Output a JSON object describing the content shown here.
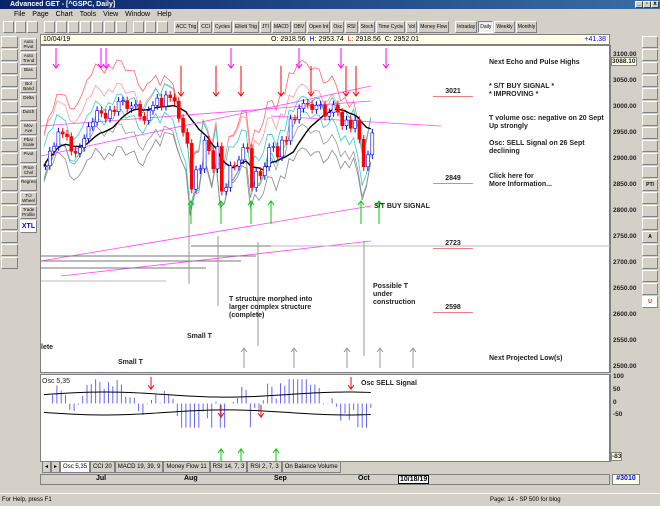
{
  "window": {
    "title": "Advanced GET - [^GSPC, Daily]"
  },
  "menu": [
    "File",
    "Page",
    "Chart",
    "Tools",
    "View",
    "Window",
    "Help"
  ],
  "toolbar": {
    "study_buttons": [
      "ACC Trig",
      "CCI",
      "Cycles",
      "Elliott Trig",
      "JTI",
      "MACD",
      "OBV",
      "Open Int",
      "Osc",
      "RSI",
      "Stoch",
      "Time Cycle",
      "Vol",
      "Money Flow"
    ],
    "period_buttons": [
      "Intraday",
      "Daily",
      "Weekly",
      "Monthly"
    ],
    "active_period": "Daily"
  },
  "infobar": {
    "date": "10/04/19",
    "open_label": "O:",
    "open": "2918.56",
    "high_label": "H:",
    "high": "2953.74",
    "low_label": "L:",
    "low": "2918.56",
    "close_label": "C:",
    "close": "2952.01",
    "change": "+41.38"
  },
  "left_tools": [
    "Auto Pivot",
    "Auto Trend",
    "Bias",
    "Bol Band",
    "Delta",
    "Dutch",
    "Mov Ave",
    "Pbar Scale",
    "Pivot",
    "Price Chnl",
    "Regression",
    "T/J Wheel",
    "Trade Profile",
    "XTL"
  ],
  "price_axis": {
    "ticks": [
      "3100.00",
      "3050.00",
      "3000.00",
      "2950.00",
      "2900.00",
      "2850.00",
      "2800.00",
      "2750.00",
      "2700.00",
      "2650.00",
      "2600.00",
      "2550.00",
      "2500.00"
    ],
    "current": "3088.10"
  },
  "levels": [
    "3021",
    "2849",
    "2723",
    "2598"
  ],
  "annotations": {
    "echo": "Next Echo and Pulse Highs",
    "buy1": "* S/T BUY SIGNAL *",
    "buy2": "* IMPROVING *",
    "vol1": "T volume osc: negative on 20 Sept",
    "vol2": "Up strongly",
    "osc1": "Osc: SELL Signal on 26 Sept",
    "osc2": "declining",
    "click1": "Click here for",
    "click2": "More Information...",
    "st_buy": "S/T BUY SIGNAL",
    "t_struct1": "T structure morphed into",
    "t_struct2": "larger complex structure",
    "t_struct3": "(complete)",
    "possible1": "Possible T",
    "possible2": "under",
    "possible3": "construction",
    "small_t1": "Small T",
    "small_t2": "Small T",
    "lete": "lete",
    "next_low": "Next Projected Low(s)"
  },
  "osc": {
    "label": "Osc 5,35",
    "signal": "Osc SELL Signal",
    "ticks": [
      "100",
      "50",
      "0",
      "-50"
    ],
    "current": "-83"
  },
  "tabs": [
    "Osc 5,35",
    "CCI 20",
    "MACD 19, 39, 9",
    "Money Flow 11",
    "RSI 14, 7, 3",
    "RSI 2, 7, 3",
    "On Balance Volume"
  ],
  "dates": {
    "months": [
      "Jul",
      "Aug",
      "Sep",
      "Oct"
    ],
    "cursor": "10/18/19",
    "bar_count": "#3010"
  },
  "status": {
    "left": "For Help, press F1",
    "right": "Page: 14 - SP 500 for blog"
  },
  "colors": {
    "up": "#0000ff",
    "down": "#ff0000",
    "buy_arrow": "#00cc00",
    "sell_arrow": "#ff0000",
    "echo_arrow": "#ff00ff",
    "osc_bar": "#6666ff"
  },
  "chart_data": {
    "type": "candlestick",
    "closes": [
      2889,
      2917,
      2926,
      2954,
      2950,
      2945,
      2917,
      2913,
      2924,
      2941,
      2964,
      2973,
      2995,
      2990,
      2980,
      2996,
      2993,
      3013,
      3014,
      2999,
      3004,
      3007,
      2984,
      2976,
      2995,
      3005,
      3019,
      3003,
      3025,
      3020,
      3013,
      2980,
      2953,
      2932,
      2844,
      2881,
      2883,
      2938,
      2918,
      2883,
      2926,
      2840,
      2847,
      2889,
      2888,
      2900,
      2924,
      2922,
      2847,
      2878,
      2870,
      2887,
      2924,
      2926,
      2906,
      2938,
      2937,
      2979,
      2978,
      2999,
      3009,
      3007,
      2997,
      3005,
      3006,
      2984,
      2991,
      3006,
      2992,
      2966,
      2977,
      2961,
      2976,
      2940,
      2887,
      2910,
      2952
    ]
  }
}
